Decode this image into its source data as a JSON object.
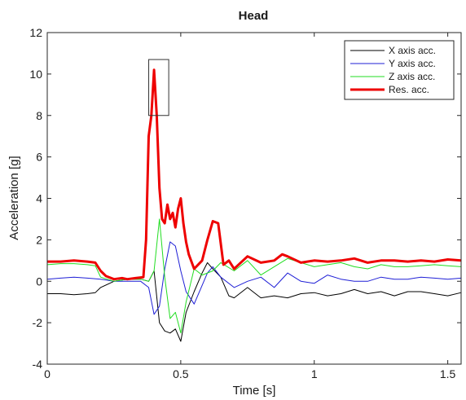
{
  "chart_data": {
    "type": "line",
    "title": "Head",
    "xlabel": "Time [s]",
    "ylabel": "Acceleration [g]",
    "xlim": [
      0,
      1.55
    ],
    "ylim": [
      -4,
      12
    ],
    "xticks": [
      0,
      0.5,
      1,
      1.5
    ],
    "xtick_labels": [
      "0",
      "0.5",
      "1",
      "1.5"
    ],
    "yticks": [
      -4,
      -2,
      0,
      2,
      4,
      6,
      8,
      10,
      12
    ],
    "ytick_labels": [
      "-4",
      "-2",
      "0",
      "2",
      "4",
      "6",
      "8",
      "10",
      "12"
    ],
    "grid": false,
    "legend_position": "top-right",
    "annotation_box": {
      "x": [
        0.38,
        0.455
      ],
      "y": [
        8,
        10.7
      ]
    },
    "series": [
      {
        "name": "X axis acc.",
        "color": "#000000",
        "x": [
          0,
          0.05,
          0.1,
          0.15,
          0.18,
          0.2,
          0.25,
          0.3,
          0.35,
          0.38,
          0.4,
          0.42,
          0.44,
          0.46,
          0.48,
          0.5,
          0.52,
          0.55,
          0.58,
          0.6,
          0.62,
          0.65,
          0.68,
          0.7,
          0.75,
          0.8,
          0.85,
          0.9,
          0.95,
          1.0,
          1.05,
          1.1,
          1.15,
          1.2,
          1.25,
          1.3,
          1.35,
          1.4,
          1.45,
          1.5,
          1.55
        ],
        "values": [
          -0.6,
          -0.6,
          -0.65,
          -0.6,
          -0.55,
          -0.3,
          0.0,
          0.1,
          0.1,
          0.0,
          0.5,
          -2.0,
          -2.4,
          -2.5,
          -2.3,
          -2.9,
          -1.5,
          -0.5,
          0.4,
          0.9,
          0.6,
          0.2,
          -0.7,
          -0.8,
          -0.3,
          -0.8,
          -0.7,
          -0.8,
          -0.6,
          -0.55,
          -0.7,
          -0.6,
          -0.4,
          -0.6,
          -0.5,
          -0.7,
          -0.5,
          -0.5,
          -0.6,
          -0.7,
          -0.55
        ]
      },
      {
        "name": "Y axis acc.",
        "color": "#1f1fd6",
        "x": [
          0,
          0.05,
          0.1,
          0.15,
          0.2,
          0.25,
          0.3,
          0.35,
          0.38,
          0.4,
          0.42,
          0.44,
          0.46,
          0.48,
          0.5,
          0.52,
          0.55,
          0.58,
          0.6,
          0.62,
          0.65,
          0.7,
          0.75,
          0.8,
          0.85,
          0.9,
          0.95,
          1.0,
          1.05,
          1.1,
          1.15,
          1.2,
          1.25,
          1.3,
          1.35,
          1.4,
          1.45,
          1.5,
          1.55
        ],
        "values": [
          0.1,
          0.15,
          0.2,
          0.15,
          0.1,
          0.0,
          0.0,
          0.0,
          -0.3,
          -1.6,
          -1.2,
          0.6,
          1.9,
          1.7,
          0.5,
          -0.5,
          -1.1,
          -0.2,
          0.4,
          0.7,
          0.2,
          -0.3,
          0.0,
          0.2,
          -0.3,
          0.4,
          0.0,
          -0.1,
          0.3,
          0.1,
          0.0,
          0.0,
          0.2,
          0.1,
          0.1,
          0.2,
          0.15,
          0.1,
          0.15
        ]
      },
      {
        "name": "Z axis acc.",
        "color": "#22dd22",
        "x": [
          0,
          0.05,
          0.1,
          0.15,
          0.18,
          0.2,
          0.25,
          0.3,
          0.35,
          0.38,
          0.4,
          0.42,
          0.44,
          0.46,
          0.48,
          0.5,
          0.52,
          0.55,
          0.58,
          0.6,
          0.62,
          0.65,
          0.7,
          0.75,
          0.8,
          0.85,
          0.9,
          0.95,
          1.0,
          1.05,
          1.1,
          1.15,
          1.2,
          1.25,
          1.3,
          1.35,
          1.4,
          1.45,
          1.5,
          1.55
        ],
        "values": [
          0.8,
          0.85,
          0.85,
          0.8,
          0.75,
          0.2,
          0.0,
          0.1,
          0.1,
          0.0,
          0.5,
          3.0,
          0.2,
          -1.8,
          -1.5,
          -2.5,
          -1.0,
          0.6,
          0.3,
          0.4,
          0.5,
          0.9,
          0.5,
          1.0,
          0.3,
          0.7,
          1.1,
          0.9,
          0.7,
          0.8,
          0.9,
          0.7,
          0.6,
          0.8,
          0.7,
          0.7,
          0.75,
          0.8,
          0.75,
          0.7
        ]
      },
      {
        "name": "Res. acc.",
        "color": "#ee0000",
        "x": [
          0,
          0.05,
          0.1,
          0.15,
          0.18,
          0.2,
          0.22,
          0.25,
          0.28,
          0.3,
          0.33,
          0.36,
          0.37,
          0.38,
          0.39,
          0.4,
          0.41,
          0.42,
          0.43,
          0.44,
          0.45,
          0.46,
          0.47,
          0.48,
          0.49,
          0.5,
          0.51,
          0.52,
          0.53,
          0.55,
          0.58,
          0.6,
          0.62,
          0.64,
          0.66,
          0.68,
          0.7,
          0.75,
          0.8,
          0.85,
          0.88,
          0.9,
          0.95,
          1.0,
          1.05,
          1.1,
          1.15,
          1.2,
          1.25,
          1.3,
          1.35,
          1.4,
          1.45,
          1.5,
          1.55
        ],
        "values": [
          0.95,
          0.95,
          1.0,
          0.95,
          0.9,
          0.5,
          0.25,
          0.1,
          0.15,
          0.1,
          0.15,
          0.2,
          2.0,
          7.0,
          8.0,
          10.2,
          8.0,
          4.5,
          3.0,
          2.8,
          3.7,
          3.0,
          3.3,
          2.6,
          3.5,
          4.0,
          2.8,
          1.9,
          1.3,
          0.6,
          1.0,
          2.0,
          2.9,
          2.8,
          0.8,
          1.0,
          0.6,
          1.2,
          0.9,
          1.0,
          1.3,
          1.2,
          0.9,
          1.0,
          0.95,
          1.0,
          1.1,
          0.9,
          1.0,
          1.0,
          0.95,
          1.0,
          0.95,
          1.05,
          1.0
        ]
      }
    ]
  }
}
